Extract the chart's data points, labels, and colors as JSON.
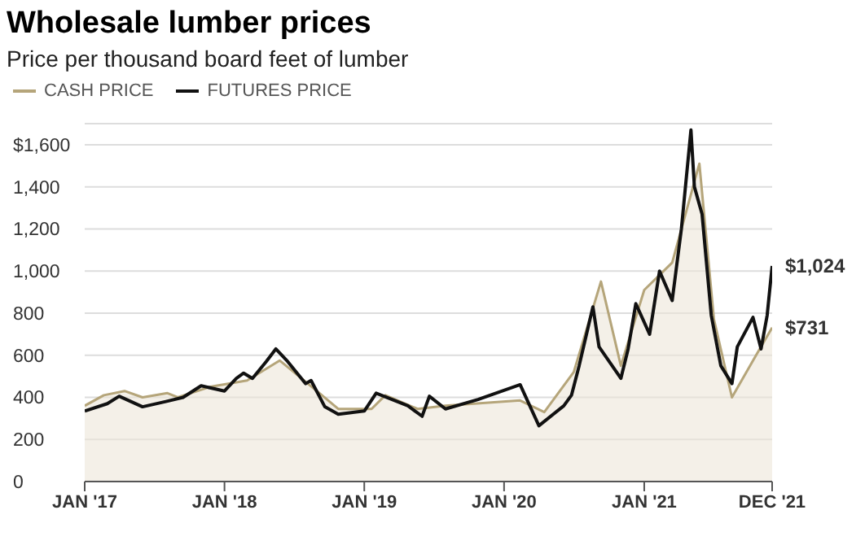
{
  "chart_data": {
    "type": "line",
    "title": "Wholesale lumber prices",
    "subtitle": "Price per thousand board feet of lumber",
    "xlim": [
      "2017-01",
      "2021-12"
    ],
    "xticks": [
      {
        "value": "2017-01",
        "label": "JAN '17"
      },
      {
        "value": "2018-01",
        "label": "JAN '18"
      },
      {
        "value": "2019-01",
        "label": "JAN '19"
      },
      {
        "value": "2020-01",
        "label": "JAN '20"
      },
      {
        "value": "2021-01",
        "label": "JAN '21"
      },
      {
        "value": "2021-12",
        "label": "DEC '21"
      }
    ],
    "ylim": [
      0,
      1700
    ],
    "yticks": [
      0,
      200,
      400,
      600,
      800,
      {
        "value": 1000,
        "label": "1,000"
      },
      {
        "value": 1200,
        "label": "1,200"
      },
      {
        "value": 1400,
        "label": "1,400"
      },
      {
        "value": 1600,
        "label": "$1,600"
      }
    ],
    "grid": "y",
    "legend": "top left",
    "marker": "none",
    "line_style": "solid",
    "series": [
      {
        "name": "CASH PRICE",
        "type": "area",
        "color": "#b5a57a",
        "x": [
          "2017-01",
          "2017-02-20",
          "2017-04-15",
          "2017-06",
          "2017-08-05",
          "2017-09",
          "2017-11-25",
          "2018-03",
          "2018-05-25",
          "2018-08-30",
          "2018-10-25",
          "2019-01-20",
          "2019-02-25",
          "2019-05-20",
          "2019-08",
          "2020-02-12",
          "2020-04-15",
          "2020-07",
          "2020-09-10",
          "2020-11",
          "2021-01",
          "2021-03-15",
          "2021-05-25",
          "2021-07-02",
          "2021-08-18",
          "2021-10-20",
          "2021-12"
        ],
        "values": [
          360,
          410,
          430,
          400,
          420,
          400,
          450,
          480,
          575,
          430,
          345,
          345,
          410,
          345,
          360,
          385,
          330,
          520,
          950,
          550,
          910,
          1040,
          1510,
          770,
          400,
          600,
          731
        ],
        "value_labels": [
          null,
          null,
          null,
          null,
          null,
          null,
          null,
          null,
          null,
          null,
          null,
          null,
          null,
          null,
          null,
          null,
          null,
          null,
          null,
          null,
          null,
          null,
          null,
          null,
          null,
          null,
          "$731"
        ]
      },
      {
        "name": "FUTURES PRICE",
        "color": "#111111",
        "x": [
          "2017-01",
          "2017-03",
          "2017-04",
          "2017-06",
          "2017-08",
          "2017-09-15",
          "2017-11",
          "2018-01",
          "2018-02",
          "2018-02-20",
          "2018-03-15",
          "2018-04-20",
          "2018-05-15",
          "2018-06-15",
          "2018-08",
          "2018-08-15",
          "2018-09-20",
          "2018-10-25",
          "2019-01",
          "2019-02",
          "2019-04-25",
          "2019-06",
          "2019-06-20",
          "2019-08",
          "2019-10-25",
          "2020-02-12",
          "2020-04",
          "2020-06-05",
          "2020-06-25",
          "2020-07-15",
          "2020-08-20",
          "2020-09-05",
          "2020-11",
          "2020-11-20",
          "2020-12-10",
          "2021-01-15",
          "2021-02-10",
          "2021-03-15",
          "2021-04-08",
          "2021-05-03",
          "2021-05-12",
          "2021-06",
          "2021-06-25",
          "2021-07-20",
          "2021-08-18",
          "2021-09",
          "2021-10-12",
          "2021-11-02",
          "2021-11-18",
          "2021-12"
        ],
        "values": [
          335,
          370,
          405,
          355,
          380,
          400,
          455,
          430,
          490,
          515,
          490,
          570,
          630,
          570,
          465,
          480,
          355,
          320,
          335,
          420,
          360,
          310,
          405,
          345,
          390,
          460,
          265,
          360,
          410,
          550,
          830,
          640,
          490,
          630,
          845,
          700,
          1000,
          860,
          1200,
          1670,
          1400,
          1270,
          790,
          550,
          465,
          640,
          780,
          630,
          790,
          1024
        ],
        "value_labels": [
          null,
          null,
          null,
          null,
          null,
          null,
          null,
          null,
          null,
          null,
          null,
          null,
          null,
          null,
          null,
          null,
          null,
          null,
          null,
          null,
          null,
          null,
          null,
          null,
          null,
          null,
          null,
          null,
          null,
          null,
          null,
          null,
          null,
          null,
          null,
          null,
          null,
          null,
          null,
          null,
          null,
          null,
          null,
          null,
          null,
          null,
          null,
          null,
          null,
          "$1,024"
        ]
      }
    ]
  }
}
